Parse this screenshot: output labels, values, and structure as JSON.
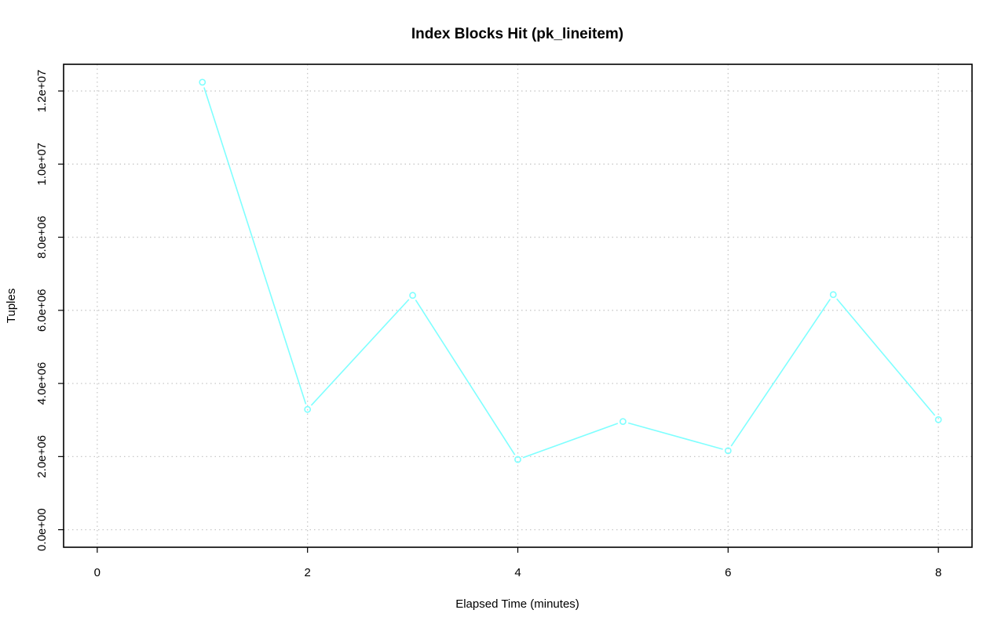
{
  "chart_data": {
    "type": "line",
    "title": "Index Blocks Hit (pk_lineitem)",
    "xlabel": "Elapsed Time (minutes)",
    "ylabel": "Tuples",
    "xlim": [
      -0.32,
      8.32
    ],
    "ylim": [
      -480000,
      12730000
    ],
    "grid": true,
    "x_ticks": [
      0,
      2,
      4,
      6,
      8
    ],
    "x_tick_labels": [
      "0",
      "2",
      "4",
      "6",
      "8"
    ],
    "y_ticks": [
      0,
      2000000,
      4000000,
      6000000,
      8000000,
      10000000,
      12000000
    ],
    "y_tick_labels": [
      "0.0e+00",
      "2.0e+06",
      "4.0e+06",
      "6.0e+06",
      "8.0e+06",
      "1.0e+07",
      "1.2e+07"
    ],
    "series": [
      {
        "name": "pk_lineitem",
        "color": "#7fffff",
        "marker": "open-circle",
        "x": [
          1,
          2,
          3,
          4,
          5,
          6,
          7,
          8
        ],
        "values": [
          12240000,
          3290000,
          6410000,
          1920000,
          2960000,
          2160000,
          6430000,
          3010000
        ]
      }
    ]
  }
}
